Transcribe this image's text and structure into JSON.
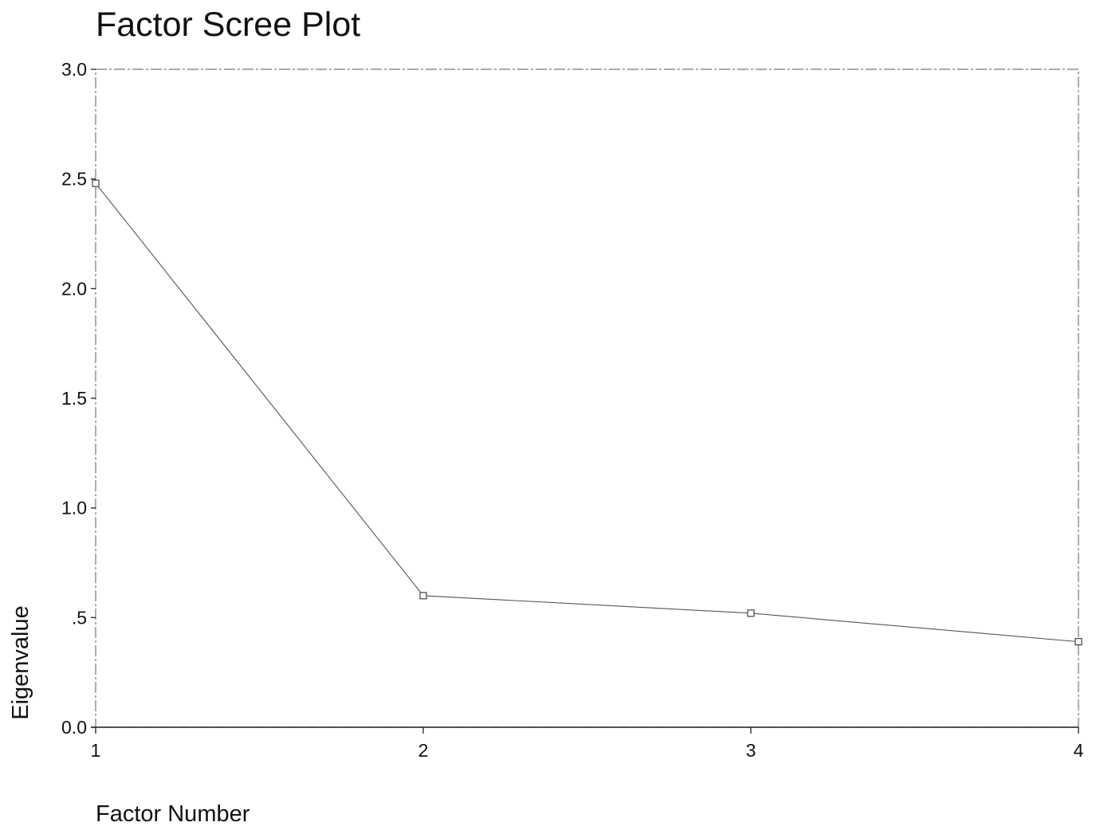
{
  "chart_data": {
    "type": "line",
    "title": "Factor Scree Plot",
    "xlabel": "Factor Number",
    "ylabel": "Eigenvalue",
    "x": [
      1,
      2,
      3,
      4
    ],
    "x_tick_labels": [
      "1",
      "2",
      "3",
      "4"
    ],
    "series": [
      {
        "values": [
          2.48,
          0.6,
          0.52,
          0.39
        ]
      }
    ],
    "ylim": [
      0,
      3
    ],
    "xlim": [
      1,
      4
    ],
    "y_ticks": [
      0,
      0.5,
      1.0,
      1.5,
      2.0,
      2.5,
      3.0
    ],
    "y_tick_labels": [
      "0.0",
      ".5",
      "1.0",
      "1.5",
      "2.0",
      "2.5",
      "3.0"
    ],
    "grid": false,
    "marker": "open-square",
    "line_color": "#555555"
  }
}
